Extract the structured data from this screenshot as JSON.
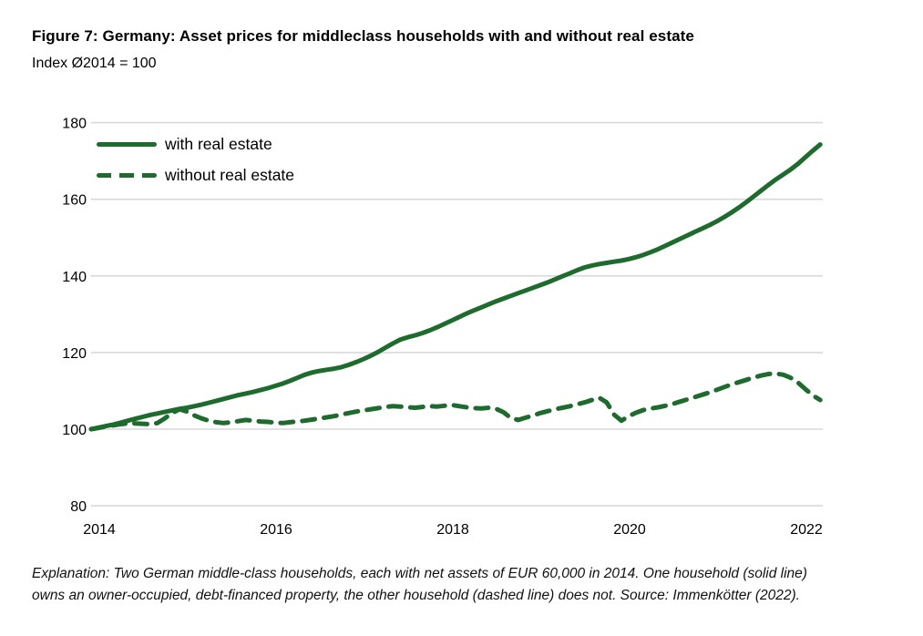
{
  "figure": {
    "title": "Figure 7: Germany: Asset prices for middleclass households with and without real estate",
    "subtitle": "Index Ø2014 = 100",
    "footer_line1": "Explanation: Two German middle-class households, each with net assets of EUR 60,000 in 2014. One household (solid line)",
    "footer_line2": "owns an owner-occupied, debt-financed property, the other household (dashed line) does not. Source: Immenkötter (2022)."
  },
  "colors": {
    "series_green": "#1e6b2e",
    "gridline": "#d9d9d9",
    "text": "#000000"
  },
  "chart_data": {
    "type": "line",
    "title": "Figure 7: Germany: Asset prices for middleclass households with and without real estate",
    "subtitle_ylabel_note": "Index Ø2014 = 100",
    "x_unit": "year (monthly data)",
    "x_start": 2014.0,
    "x_step": 0.0833333,
    "x_end": 2022.25,
    "xticks": [
      2014,
      2016,
      2018,
      2020,
      2022
    ],
    "ylim": [
      80,
      180
    ],
    "yticks": [
      80,
      100,
      120,
      140,
      160,
      180
    ],
    "grid": "horizontal",
    "legend_position": "top-left",
    "series": [
      {
        "name": "with real estate",
        "style": "solid",
        "values": [
          100.0,
          100.4,
          100.8,
          101.2,
          101.7,
          102.2,
          102.7,
          103.2,
          103.7,
          104.1,
          104.5,
          104.9,
          105.3,
          105.6,
          106.0,
          106.4,
          106.9,
          107.4,
          107.9,
          108.4,
          108.9,
          109.3,
          109.7,
          110.2,
          110.7,
          111.3,
          111.9,
          112.6,
          113.4,
          114.2,
          114.8,
          115.2,
          115.5,
          115.8,
          116.2,
          116.8,
          117.5,
          118.3,
          119.2,
          120.2,
          121.3,
          122.4,
          123.4,
          124.0,
          124.5,
          125.1,
          125.8,
          126.6,
          127.5,
          128.4,
          129.3,
          130.2,
          131.0,
          131.8,
          132.6,
          133.4,
          134.1,
          134.8,
          135.5,
          136.2,
          136.9,
          137.6,
          138.3,
          139.1,
          139.9,
          140.7,
          141.5,
          142.2,
          142.7,
          143.1,
          143.4,
          143.7,
          144.0,
          144.4,
          144.9,
          145.5,
          146.2,
          147.0,
          147.9,
          148.8,
          149.7,
          150.6,
          151.5,
          152.4,
          153.3,
          154.3,
          155.4,
          156.6,
          157.9,
          159.3,
          160.8,
          162.3,
          163.8,
          165.2,
          166.5,
          167.8,
          169.3,
          171.0,
          172.7,
          174.3
        ]
      },
      {
        "name": "without real estate",
        "style": "dashed",
        "values": [
          100.0,
          100.3,
          100.7,
          101.0,
          101.3,
          101.5,
          101.5,
          101.4,
          101.3,
          101.6,
          102.8,
          104.2,
          105.2,
          104.6,
          103.6,
          102.8,
          102.2,
          101.8,
          101.6,
          101.8,
          102.1,
          102.4,
          102.2,
          102.0,
          101.9,
          101.7,
          101.6,
          101.8,
          102.0,
          102.2,
          102.5,
          102.8,
          103.1,
          103.4,
          103.8,
          104.2,
          104.6,
          104.9,
          105.2,
          105.5,
          105.8,
          106.0,
          105.9,
          105.7,
          105.6,
          105.8,
          106.0,
          105.9,
          106.1,
          106.3,
          106.0,
          105.7,
          105.5,
          105.4,
          105.6,
          105.3,
          104.4,
          102.9,
          102.4,
          103.0,
          103.6,
          104.2,
          104.7,
          105.2,
          105.6,
          106.0,
          106.5,
          107.0,
          107.6,
          108.2,
          107.0,
          103.8,
          102.2,
          103.4,
          104.3,
          105.0,
          105.4,
          105.7,
          106.1,
          106.6,
          107.2,
          107.8,
          108.4,
          109.0,
          109.6,
          110.3,
          111.0,
          111.7,
          112.3,
          112.9,
          113.5,
          114.0,
          114.4,
          114.5,
          114.2,
          113.4,
          112.1,
          110.4,
          108.8,
          107.6
        ]
      }
    ]
  }
}
